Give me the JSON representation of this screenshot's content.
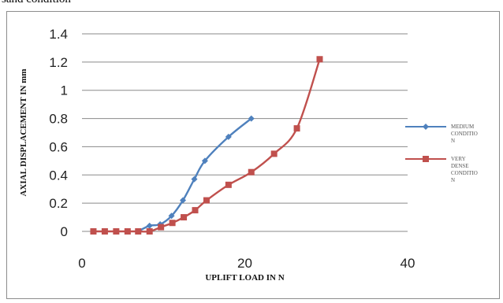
{
  "caption": "sand condition",
  "chart_data": {
    "type": "line",
    "title": "",
    "xlabel": "UPLIFT LOAD IN N",
    "ylabel": "AXIAL DISPLACEMENT IN mm",
    "xlim": [
      0,
      40
    ],
    "ylim": [
      0,
      1.4
    ],
    "x_ticks": [
      "0",
      "20",
      "40"
    ],
    "y_ticks": [
      "0",
      "0.2",
      "0.4",
      "0.6",
      "0.8",
      "1",
      "1.2",
      "1.4"
    ],
    "grid": "horizontal",
    "legend_position": "right",
    "series": [
      {
        "name": "MEDIUM CONDITION",
        "legend_lines": [
          "MEDIUM",
          "CONDITIO",
          "N"
        ],
        "color": "#4f81bd",
        "marker": "diamond",
        "points": [
          [
            6.9,
            0.0
          ],
          [
            8.3,
            0.04
          ],
          [
            9.6,
            0.05
          ],
          [
            11.0,
            0.11
          ],
          [
            12.4,
            0.22
          ],
          [
            13.8,
            0.37
          ],
          [
            15.1,
            0.5
          ],
          [
            18.0,
            0.67
          ],
          [
            20.8,
            0.8
          ]
        ]
      },
      {
        "name": "VERY DENSE CONDITION",
        "legend_lines": [
          "VERY",
          "DENSE",
          "CONDITIO",
          "N"
        ],
        "color": "#c0504d",
        "marker": "square",
        "points": [
          [
            1.4,
            0.0
          ],
          [
            2.8,
            0.0
          ],
          [
            4.2,
            0.0
          ],
          [
            5.6,
            0.0
          ],
          [
            6.9,
            0.0
          ],
          [
            8.3,
            0.0
          ],
          [
            9.7,
            0.03
          ],
          [
            11.1,
            0.06
          ],
          [
            12.5,
            0.1
          ],
          [
            13.9,
            0.15
          ],
          [
            15.3,
            0.22
          ],
          [
            18.0,
            0.33
          ],
          [
            20.8,
            0.42
          ],
          [
            23.6,
            0.55
          ],
          [
            26.4,
            0.73
          ],
          [
            29.2,
            1.22
          ]
        ]
      }
    ]
  }
}
